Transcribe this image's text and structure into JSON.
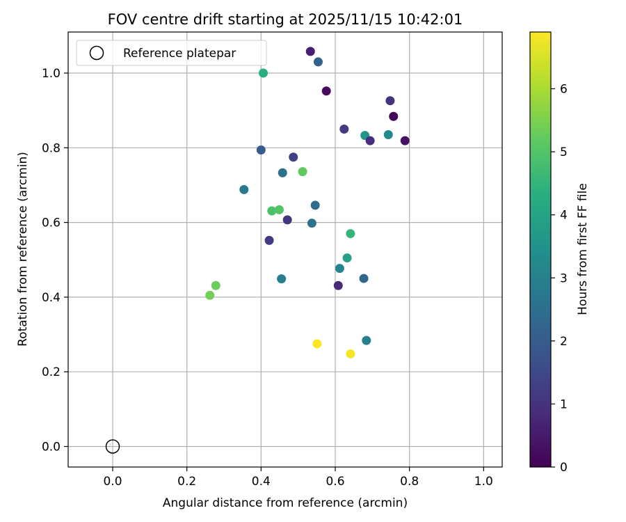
{
  "chart_data": {
    "type": "scatter",
    "title": "FOV centre drift starting at 2025/11/15 10:42:01",
    "xlabel": "Angular distance from reference (arcmin)",
    "ylabel": "Rotation from reference (arcmin)",
    "xlim": [
      -0.12,
      1.05
    ],
    "ylim": [
      -0.055,
      1.11
    ],
    "x_ticks": [
      0.0,
      0.2,
      0.4,
      0.6,
      0.8,
      1.0
    ],
    "y_ticks": [
      0.0,
      0.2,
      0.4,
      0.6,
      0.8,
      1.0
    ],
    "x_tick_labels": [
      "0.0",
      "0.2",
      "0.4",
      "0.6",
      "0.8",
      "1.0"
    ],
    "y_tick_labels": [
      "0.0",
      "0.2",
      "0.4",
      "0.6",
      "0.8",
      "1.0"
    ],
    "grid": true,
    "legend": {
      "location": "top-left",
      "entries": [
        "Reference platepar"
      ]
    },
    "reference_point": {
      "x": 0.0,
      "y": 0.0
    },
    "colorbar": {
      "label": "Hours from first FF file",
      "range": [
        0,
        6.9
      ],
      "ticks": [
        0,
        1,
        2,
        3,
        4,
        5,
        6
      ],
      "tick_labels": [
        "0",
        "1",
        "2",
        "3",
        "4",
        "5",
        "6"
      ],
      "colormap": "viridis"
    },
    "points": [
      {
        "x": 0.533,
        "y": 1.058,
        "hours": 0.6
      },
      {
        "x": 0.554,
        "y": 1.03,
        "hours": 2.1
      },
      {
        "x": 0.406,
        "y": 1.0,
        "hours": 4.3
      },
      {
        "x": 0.576,
        "y": 0.952,
        "hours": 0.2
      },
      {
        "x": 0.748,
        "y": 0.926,
        "hours": 1.0
      },
      {
        "x": 0.757,
        "y": 0.884,
        "hours": 0.1
      },
      {
        "x": 0.624,
        "y": 0.85,
        "hours": 1.2
      },
      {
        "x": 0.68,
        "y": 0.833,
        "hours": 3.6
      },
      {
        "x": 0.743,
        "y": 0.835,
        "hours": 3.2
      },
      {
        "x": 0.694,
        "y": 0.819,
        "hours": 0.9
      },
      {
        "x": 0.788,
        "y": 0.819,
        "hours": 0.3
      },
      {
        "x": 0.4,
        "y": 0.794,
        "hours": 2.0
      },
      {
        "x": 0.487,
        "y": 0.775,
        "hours": 1.3
      },
      {
        "x": 0.458,
        "y": 0.733,
        "hours": 2.5
      },
      {
        "x": 0.512,
        "y": 0.736,
        "hours": 5.2
      },
      {
        "x": 0.354,
        "y": 0.688,
        "hours": 2.8
      },
      {
        "x": 0.546,
        "y": 0.646,
        "hours": 2.4
      },
      {
        "x": 0.429,
        "y": 0.631,
        "hours": 4.9
      },
      {
        "x": 0.449,
        "y": 0.634,
        "hours": 5.0
      },
      {
        "x": 0.471,
        "y": 0.607,
        "hours": 1.1
      },
      {
        "x": 0.537,
        "y": 0.598,
        "hours": 2.6
      },
      {
        "x": 0.641,
        "y": 0.57,
        "hours": 4.5
      },
      {
        "x": 0.422,
        "y": 0.552,
        "hours": 1.2
      },
      {
        "x": 0.632,
        "y": 0.505,
        "hours": 3.9
      },
      {
        "x": 0.612,
        "y": 0.477,
        "hours": 3.1
      },
      {
        "x": 0.455,
        "y": 0.449,
        "hours": 2.9
      },
      {
        "x": 0.677,
        "y": 0.45,
        "hours": 2.3
      },
      {
        "x": 0.608,
        "y": 0.431,
        "hours": 0.8
      },
      {
        "x": 0.278,
        "y": 0.431,
        "hours": 5.3
      },
      {
        "x": 0.262,
        "y": 0.405,
        "hours": 5.4
      },
      {
        "x": 0.684,
        "y": 0.284,
        "hours": 3.0
      },
      {
        "x": 0.551,
        "y": 0.275,
        "hours": 6.9
      },
      {
        "x": 0.641,
        "y": 0.248,
        "hours": 6.8
      }
    ]
  }
}
